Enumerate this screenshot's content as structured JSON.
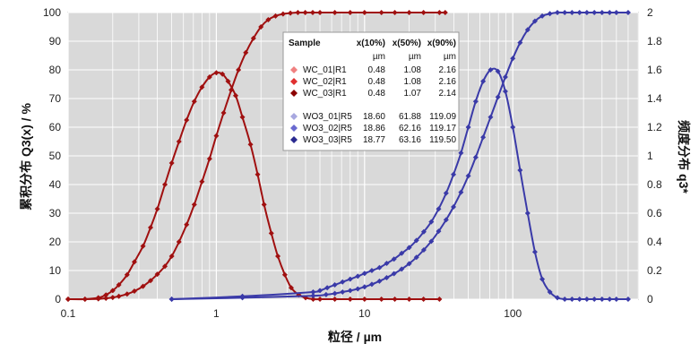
{
  "chart_data": {
    "type": "line",
    "x_scale": "log",
    "xlim": [
      0.1,
      700
    ],
    "ylim_left": [
      0,
      100
    ],
    "ylim_right": [
      0,
      2
    ],
    "grid": true,
    "legend_position": "top-center",
    "xlabel": "粒径 / µm",
    "ylabel_left": "累积分布 Q3(x) / %",
    "ylabel_right": "频度分布 q3*",
    "x_ticks": [
      "0.1",
      "1",
      "10",
      "100"
    ],
    "x_tick_values": [
      0.1,
      1,
      10,
      100
    ],
    "y_left_ticks": [
      0,
      10,
      20,
      30,
      40,
      50,
      60,
      70,
      80,
      90,
      100
    ],
    "y_right_ticks": [
      "0",
      "0.2",
      "0.4",
      "0.6",
      "0.8",
      "1",
      "1.2",
      "1.4",
      "1.6",
      "1.8",
      "2"
    ],
    "legend": {
      "header": [
        "Sample",
        "x(10%)",
        "x(50%)",
        "x(90%)"
      ],
      "units": [
        "µm",
        "µm",
        "µm"
      ],
      "rows": [
        {
          "name": "WC_01|R1",
          "color": "#f08080",
          "x10": "0.48",
          "x50": "1.08",
          "x90": "2.16"
        },
        {
          "name": "WC_02|R1",
          "color": "#e03030",
          "x10": "0.48",
          "x50": "1.08",
          "x90": "2.16"
        },
        {
          "name": "WC_03|R1",
          "color": "#8b0000",
          "x10": "0.48",
          "x50": "1.07",
          "x90": "2.14"
        },
        {
          "name": "WO3_01|R5",
          "color": "#a8a8e0",
          "x10": "18.60",
          "x50": "61.88",
          "x90": "119.09"
        },
        {
          "name": "WO3_02|R5",
          "color": "#6a6ad0",
          "x10": "18.86",
          "x50": "62.16",
          "x90": "119.17"
        },
        {
          "name": "WO3_03|R5",
          "color": "#2a2a90",
          "x10": "18.77",
          "x50": "63.16",
          "x90": "119.50"
        }
      ]
    },
    "series": [
      {
        "group": "WC",
        "kind": "cumulative",
        "axis": "left",
        "color": "#a01010",
        "x": [
          0.1,
          0.13,
          0.16,
          0.18,
          0.2,
          0.22,
          0.25,
          0.28,
          0.32,
          0.36,
          0.4,
          0.45,
          0.5,
          0.56,
          0.63,
          0.71,
          0.8,
          0.9,
          1.0,
          1.12,
          1.26,
          1.41,
          1.58,
          1.78,
          2.0,
          2.24,
          2.51,
          2.82,
          3.16,
          3.55,
          3.98,
          4.47,
          5.0,
          6.3,
          8.0,
          10,
          13,
          16,
          20,
          25,
          32,
          35
        ],
        "y": [
          0,
          0,
          0.1,
          0.3,
          0.6,
          1.0,
          1.8,
          2.8,
          4.5,
          6.5,
          8.7,
          11.5,
          15,
          20,
          26,
          33,
          41,
          49,
          57,
          65,
          73,
          80,
          86,
          91,
          95,
          97.5,
          98.8,
          99.5,
          99.8,
          100,
          100,
          100,
          100,
          100,
          100,
          100,
          100,
          100,
          100,
          100,
          100,
          100
        ]
      },
      {
        "group": "WC",
        "kind": "density",
        "axis": "right",
        "color": "#a01010",
        "x": [
          0.1,
          0.13,
          0.16,
          0.18,
          0.2,
          0.22,
          0.25,
          0.28,
          0.32,
          0.36,
          0.4,
          0.45,
          0.5,
          0.56,
          0.63,
          0.71,
          0.8,
          0.9,
          1.0,
          1.1,
          1.2,
          1.35,
          1.5,
          1.7,
          1.9,
          2.1,
          2.35,
          2.6,
          2.9,
          3.2,
          3.6,
          4.0,
          4.5,
          5.0,
          6.3,
          8.0,
          10,
          13,
          16,
          20,
          25,
          32
        ],
        "y": [
          0,
          0,
          0.01,
          0.03,
          0.06,
          0.1,
          0.17,
          0.26,
          0.37,
          0.5,
          0.63,
          0.8,
          0.95,
          1.1,
          1.25,
          1.38,
          1.48,
          1.55,
          1.58,
          1.57,
          1.52,
          1.42,
          1.27,
          1.08,
          0.87,
          0.66,
          0.46,
          0.3,
          0.17,
          0.08,
          0.03,
          0.01,
          0,
          0,
          0,
          0,
          0,
          0,
          0,
          0,
          0,
          0
        ]
      },
      {
        "group": "WO3",
        "kind": "cumulative",
        "axis": "left",
        "color": "#3a3aa8",
        "x": [
          0.5,
          1.5,
          4.5,
          5.5,
          6.3,
          7.1,
          8.0,
          9.0,
          10,
          11.2,
          12.6,
          14.1,
          15.8,
          17.8,
          20,
          22.4,
          25.1,
          28.2,
          31.6,
          35.5,
          39.8,
          44.7,
          50.1,
          56.2,
          63.1,
          70.8,
          79.4,
          89.1,
          100,
          112,
          126,
          141,
          158,
          178,
          200,
          224,
          251,
          282,
          316,
          355,
          400,
          450,
          500,
          600
        ],
        "y": [
          0,
          0.5,
          1.2,
          1.6,
          2.0,
          2.5,
          3.0,
          3.6,
          4.3,
          5.2,
          6.3,
          7.5,
          8.9,
          10.5,
          12.4,
          14.6,
          17.2,
          20.2,
          23.7,
          27.7,
          32.2,
          37.3,
          43,
          49.5,
          56.5,
          63.5,
          70.5,
          77.5,
          84,
          89.5,
          94,
          97,
          98.8,
          99.6,
          100,
          100,
          100,
          100,
          100,
          100,
          100,
          100,
          100,
          100
        ]
      },
      {
        "group": "WO3",
        "kind": "density",
        "axis": "right",
        "color": "#3a3aa8",
        "x": [
          0.5,
          1.5,
          4.5,
          5.0,
          5.6,
          6.3,
          7.1,
          8.0,
          9.0,
          10,
          11.2,
          12.6,
          14.1,
          15.8,
          17.8,
          20,
          22.4,
          25.1,
          28.2,
          31.6,
          35.5,
          39.8,
          44.7,
          50.1,
          56.2,
          63.1,
          70.8,
          79.4,
          89.1,
          100,
          112,
          126,
          141,
          158,
          178,
          200,
          224,
          251,
          282,
          316,
          355,
          400,
          450,
          500,
          600
        ],
        "y": [
          0,
          0.02,
          0.05,
          0.06,
          0.08,
          0.1,
          0.12,
          0.14,
          0.16,
          0.18,
          0.2,
          0.22,
          0.25,
          0.28,
          0.32,
          0.36,
          0.41,
          0.47,
          0.54,
          0.63,
          0.74,
          0.87,
          1.02,
          1.2,
          1.38,
          1.52,
          1.6,
          1.59,
          1.45,
          1.2,
          0.9,
          0.6,
          0.33,
          0.14,
          0.05,
          0.01,
          0,
          0,
          0,
          0,
          0,
          0,
          0,
          0,
          0
        ]
      }
    ]
  }
}
